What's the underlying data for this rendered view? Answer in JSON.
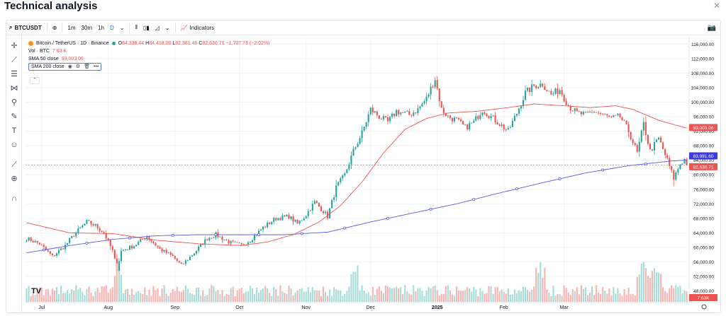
{
  "page": {
    "title": "Technical analysis",
    "close_icon": "close-icon"
  },
  "toolbar": {
    "symbol": "BTCUSDT",
    "intervals": [
      "1m",
      "30m",
      "1h",
      "D"
    ],
    "active_interval": "D",
    "indicators_label": "Indicators",
    "icons": [
      "search-icon",
      "add-icon",
      "chevron-down-icon",
      "bars-icon",
      "candles-icon",
      "area-icon",
      "chevron-down-icon",
      "indicators-icon",
      "camera-icon"
    ]
  },
  "left_tools": [
    "crosshair-icon",
    "trendline-icon",
    "fib-icon",
    "pattern-icon",
    "projection-icon",
    "brush-icon",
    "text-icon",
    "emoji-icon",
    "ruler-icon",
    "zoom-icon",
    "magnet-icon"
  ],
  "legend": {
    "symbol_text": "Bitcoin / TetherUS · 1D · Binance",
    "o_label": "O",
    "o_value": "84,338.44",
    "h_label": "H",
    "h_value": "84,418.00",
    "l_label": "L",
    "l_value": "82,381.46",
    "c_label": "C",
    "c_value": "82,630.71",
    "change": "−1,707.73 (−2.02%)",
    "vol_label": "Vol · BTC",
    "vol_value": "7.63 K",
    "sma50_label": "SMA 50 close",
    "sma50_value": "93,003.06",
    "sma200_label": "SMA 200 close"
  },
  "colors": {
    "up": "#26a69a",
    "down": "#ef5350",
    "sma50": "#f05350",
    "sma200": "#5b5be6",
    "vol_up": "#a8dcd6",
    "vol_down": "#f7b4b2",
    "grid": "#f0f3fa"
  },
  "chart_data": {
    "type": "candlestick",
    "title": "Bitcoin / TetherUS · 1D · Binance",
    "x_ticks": [
      "Jul",
      "Aug",
      "Sep",
      "Oct",
      "Nov",
      "Dec",
      "2025",
      "Feb",
      "Mar"
    ],
    "y_ticks": [
      48000,
      52000,
      56000,
      60000,
      64000,
      68000,
      72000,
      76000,
      80000,
      84000,
      88000,
      92000,
      96000,
      100000,
      104000,
      108000,
      112000,
      116000
    ],
    "y_tick_labels": [
      "48,000.00",
      "52,000.00",
      "56,000.00",
      "60,000.00",
      "64,000.00",
      "68,000.00",
      "72,000.00",
      "76,000.00",
      "80,000.00",
      "84,000.00",
      "88,000.00",
      "92,000.00",
      "96,000.00",
      "100,000.00",
      "104,000.00",
      "108,000.00",
      "112,000.00",
      "116,000.00"
    ],
    "ylim": [
      45000,
      118000
    ],
    "price_anchors": [
      [
        0,
        62500
      ],
      [
        6,
        61000
      ],
      [
        12,
        57500
      ],
      [
        18,
        60500
      ],
      [
        22,
        63500
      ],
      [
        28,
        67000
      ],
      [
        32,
        66000
      ],
      [
        36,
        64000
      ],
      [
        40,
        59000
      ],
      [
        42,
        54000
      ],
      [
        44,
        59000
      ],
      [
        50,
        60500
      ],
      [
        56,
        63000
      ],
      [
        62,
        59500
      ],
      [
        68,
        57500
      ],
      [
        72,
        55000
      ],
      [
        78,
        58500
      ],
      [
        84,
        62500
      ],
      [
        88,
        63500
      ],
      [
        94,
        61500
      ],
      [
        100,
        60500
      ],
      [
        104,
        62000
      ],
      [
        110,
        65500
      ],
      [
        116,
        68000
      ],
      [
        122,
        68500
      ],
      [
        126,
        66500
      ],
      [
        130,
        69000
      ],
      [
        134,
        72500
      ],
      [
        138,
        70000
      ],
      [
        140,
        68500
      ],
      [
        144,
        76500
      ],
      [
        148,
        80000
      ],
      [
        152,
        86500
      ],
      [
        156,
        91500
      ],
      [
        160,
        98000
      ],
      [
        164,
        96000
      ],
      [
        168,
        94500
      ],
      [
        172,
        97500
      ],
      [
        178,
        96500
      ],
      [
        182,
        98000
      ],
      [
        186,
        101000
      ],
      [
        190,
        106500
      ],
      [
        193,
        98000
      ],
      [
        196,
        96000
      ],
      [
        200,
        95000
      ],
      [
        204,
        93000
      ],
      [
        208,
        94500
      ],
      [
        212,
        98000
      ],
      [
        216,
        96000
      ],
      [
        220,
        94000
      ],
      [
        224,
        92000
      ],
      [
        228,
        97000
      ],
      [
        232,
        102500
      ],
      [
        236,
        104500
      ],
      [
        240,
        105000
      ],
      [
        244,
        102000
      ],
      [
        248,
        103500
      ],
      [
        252,
        99000
      ],
      [
        256,
        97000
      ],
      [
        260,
        96500
      ],
      [
        264,
        97500
      ],
      [
        268,
        96500
      ],
      [
        272,
        95500
      ],
      [
        276,
        96000
      ],
      [
        280,
        92000
      ],
      [
        284,
        86000
      ],
      [
        287,
        94000
      ],
      [
        290,
        86500
      ],
      [
        294,
        90000
      ],
      [
        298,
        84000
      ],
      [
        301,
        79000
      ],
      [
        304,
        83000
      ],
      [
        306,
        84200
      ],
      [
        307,
        82630
      ]
    ],
    "sma50_anchors": [
      [
        0,
        66800
      ],
      [
        20,
        64000
      ],
      [
        40,
        63800
      ],
      [
        60,
        62000
      ],
      [
        80,
        61000
      ],
      [
        100,
        60500
      ],
      [
        112,
        61500
      ],
      [
        124,
        63500
      ],
      [
        136,
        67000
      ],
      [
        146,
        71500
      ],
      [
        156,
        78000
      ],
      [
        166,
        86000
      ],
      [
        176,
        92500
      ],
      [
        186,
        95500
      ],
      [
        196,
        97000
      ],
      [
        210,
        97500
      ],
      [
        224,
        98500
      ],
      [
        236,
        99500
      ],
      [
        250,
        99000
      ],
      [
        262,
        98500
      ],
      [
        274,
        99000
      ],
      [
        282,
        98000
      ],
      [
        294,
        95000
      ],
      [
        306,
        93003
      ]
    ],
    "sma200_anchors": [
      [
        0,
        58500
      ],
      [
        20,
        60500
      ],
      [
        40,
        62200
      ],
      [
        60,
        63200
      ],
      [
        80,
        63500
      ],
      [
        100,
        63500
      ],
      [
        120,
        63500
      ],
      [
        140,
        64200
      ],
      [
        160,
        67000
      ],
      [
        180,
        69500
      ],
      [
        200,
        72000
      ],
      [
        220,
        75000
      ],
      [
        240,
        77800
      ],
      [
        260,
        80500
      ],
      [
        280,
        82500
      ],
      [
        300,
        83800
      ],
      [
        306,
        83991
      ]
    ],
    "last_price_label": "82,630.71",
    "sma200_label": "83,991.60",
    "sma50_label": "93,003.06",
    "volume_label": "7.63K",
    "n_candles": 308
  }
}
